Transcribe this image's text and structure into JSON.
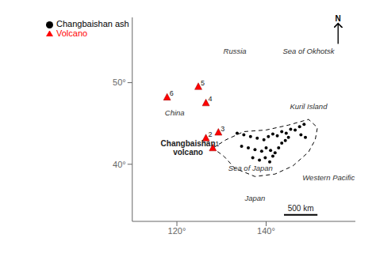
{
  "chart_data": {
    "type": "scatter",
    "xlim": [
      110,
      160
    ],
    "ylim": [
      33,
      58
    ],
    "xticks": [
      {
        "value": 120,
        "label": "120°"
      },
      {
        "value": 140,
        "label": "140°"
      }
    ],
    "yticks": [
      {
        "value": 40,
        "label": "40°"
      },
      {
        "value": 50,
        "label": "50°"
      }
    ],
    "grid": false,
    "legend": "upper left",
    "series": [
      {
        "type": "line",
        "line_style": "dashed",
        "color": "black",
        "x": [
          128.05,
          131.0,
          135.0,
          140.0,
          145.0,
          149.5,
          151.5,
          151.0,
          149.5,
          146.0,
          142.0,
          137.5,
          133.0,
          130.5,
          128.05
        ],
        "y": [
          41.98,
          43.0,
          44.0,
          44.2,
          44.8,
          45.5,
          44.5,
          43.0,
          41.5,
          39.8,
          38.8,
          38.5,
          39.5,
          41.0,
          41.98
        ]
      },
      {
        "name": "Changbaishan ash",
        "type": "scatter",
        "marker": "circle",
        "color": "black",
        "x": [
          133.5,
          135.0,
          136.5,
          138.0,
          139.5,
          140.5,
          141.5,
          142.5,
          143.5,
          144.5,
          145.5,
          134.5,
          136.0,
          137.5,
          139.0,
          140.0,
          141.0,
          142.0,
          142.8,
          143.5,
          144.3,
          145.0,
          137.0,
          138.5,
          139.8,
          140.8,
          141.5,
          146.5,
          147.5,
          148.5,
          147.8,
          148.8
        ],
        "y": [
          43.8,
          43.6,
          43.4,
          43.2,
          43.0,
          43.4,
          43.7,
          43.5,
          44.0,
          43.8,
          44.3,
          42.2,
          42.0,
          41.8,
          41.6,
          42.0,
          41.7,
          41.4,
          42.0,
          42.6,
          42.9,
          43.3,
          40.8,
          40.5,
          40.8,
          40.3,
          41.0,
          44.2,
          44.6,
          44.9,
          43.6,
          43.3
        ]
      },
      {
        "name": "Volcano",
        "type": "scatter",
        "marker": "triangle",
        "color": "red",
        "x": [
          128.05,
          126.5,
          129.3,
          126.5,
          124.8,
          117.8
        ],
        "y": [
          41.98,
          43.2,
          43.9,
          47.5,
          49.5,
          48.2
        ],
        "labels": [
          "1",
          "2",
          "3",
          "4",
          "5",
          "6"
        ]
      }
    ],
    "annotations": [
      {
        "text": "Changbaishan\nvolcano",
        "x": 122.5,
        "y": 42.0
      },
      {
        "text": "Russia",
        "x": 133.0,
        "y": 53.5
      },
      {
        "text": "China",
        "x": 119.5,
        "y": 46.0
      },
      {
        "text": "Sea of Okhotsk",
        "x": 149.5,
        "y": 53.5
      },
      {
        "text": "Sea of Japan",
        "x": 136.5,
        "y": 39.2
      },
      {
        "text": "Japan",
        "x": 137.5,
        "y": 35.5
      },
      {
        "text": "Western Pacific",
        "x": 154.0,
        "y": 38.0
      },
      {
        "text": "Kuril Island",
        "x": 149.5,
        "y": 46.8
      }
    ],
    "scale_bar": {
      "label": "500 km",
      "x": [
        144.0,
        151.5
      ],
      "y": 33.8
    },
    "north_label": "N"
  }
}
